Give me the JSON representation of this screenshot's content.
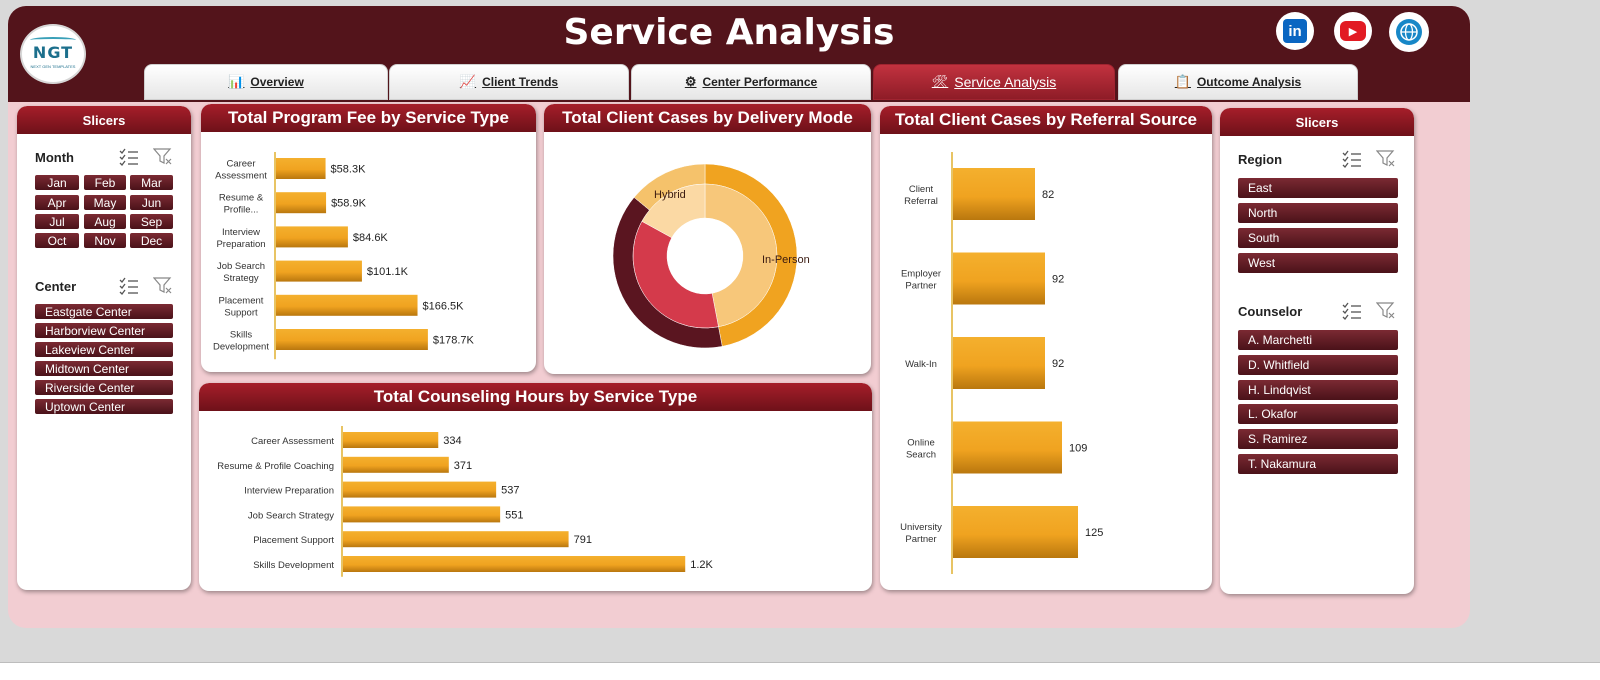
{
  "header": {
    "title": "Service Analysis",
    "logo_text": "NGT",
    "logo_sub": "NEXT GEN TEMPLATES",
    "social": [
      {
        "name": "linkedin-icon",
        "label": "in",
        "color": "#0a66c2"
      },
      {
        "name": "youtube-icon",
        "label": "▶",
        "color": "#e21b23"
      },
      {
        "name": "globe-icon",
        "label": "🌐",
        "color": "#1787c7"
      }
    ]
  },
  "tabs": [
    {
      "label": "Overview",
      "icon": "📊"
    },
    {
      "label": "Client Trends",
      "icon": "📈"
    },
    {
      "label": "Center Performance",
      "icon": "⚙"
    },
    {
      "label": "Service Analysis",
      "icon": "🛠",
      "active": true
    },
    {
      "label": "Outcome Analysis",
      "icon": "📋"
    }
  ],
  "left_slicers": {
    "title": "Slicers",
    "month_label": "Month",
    "months": [
      "Jan",
      "Feb",
      "Mar",
      "Apr",
      "May",
      "Jun",
      "Jul",
      "Aug",
      "Sep",
      "Oct",
      "Nov",
      "Dec"
    ],
    "center_label": "Center",
    "centers": [
      "Eastgate Center",
      "Harborview Center",
      "Lakeview Center",
      "Midtown Center",
      "Riverside Center",
      "Uptown Center"
    ]
  },
  "right_slicers": {
    "title": "Slicers",
    "region_label": "Region",
    "regions": [
      "East",
      "North",
      "South",
      "West"
    ],
    "counselor_label": "Counselor",
    "counselors": [
      "A. Marchetti",
      "D. Whitfield",
      "H. Lindqvist",
      "L. Okafor",
      "S. Ramirez",
      "T. Nakamura"
    ]
  },
  "colors": {
    "maroon": "#53141b",
    "bar": "#f0a320",
    "bar_dark": "#b9770e"
  },
  "chart_data": [
    {
      "type": "bar",
      "orientation": "horizontal",
      "title": "Total Program Fee by Service Type",
      "categories": [
        [
          "Career",
          "Assessment"
        ],
        [
          "Resume &",
          "Profile..."
        ],
        [
          "Interview",
          "Preparation"
        ],
        [
          "Job Search",
          "Strategy"
        ],
        [
          "Placement",
          "Support"
        ],
        [
          "Skills",
          "Development"
        ]
      ],
      "values": [
        58300,
        58900,
        84600,
        101100,
        166500,
        178700
      ],
      "labels": [
        "$58.3K",
        "$58.9K",
        "$84.6K",
        "$101.1K",
        "$166.5K",
        "$178.7K"
      ],
      "xlim": [
        0,
        200000
      ]
    },
    {
      "type": "pie",
      "variant": "doughnut",
      "title": "Total Client Cases by Delivery Mode",
      "labels": [
        "In-Person",
        "Hybrid"
      ],
      "rings": [
        {
          "values": [
            0.47,
            0.39,
            0.14
          ],
          "colors": [
            "#f0a320",
            "#5a1520",
            "#f5c26b"
          ]
        },
        {
          "values": [
            0.47,
            0.36,
            0.17
          ],
          "colors": [
            "#f7c77a",
            "#d43a4b",
            "#fbd9a4"
          ]
        }
      ]
    },
    {
      "type": "bar",
      "orientation": "vertical-labels",
      "title": "Total Client Cases by Referral Source",
      "categories": [
        [
          "Client",
          "Referral"
        ],
        [
          "Employer",
          "Partner"
        ],
        [
          "Walk-In"
        ],
        [
          "Online",
          "Search"
        ],
        [
          "University",
          "Partner"
        ]
      ],
      "values": [
        82,
        92,
        92,
        109,
        125
      ],
      "labels": [
        "82",
        "92",
        "92",
        "109",
        "125"
      ],
      "xlim": [
        0,
        140
      ]
    },
    {
      "type": "bar",
      "orientation": "horizontal",
      "title": "Total Counseling Hours by Service Type",
      "categories": [
        "Career Assessment",
        "Resume & Profile Coaching",
        "Interview Preparation",
        "Job Search Strategy",
        "Placement Support",
        "Skills Development"
      ],
      "values": [
        334,
        371,
        537,
        551,
        791,
        1200
      ],
      "labels": [
        "334",
        "371",
        "537",
        "551",
        "791",
        "1.2K"
      ],
      "xlim": [
        0,
        1350
      ]
    }
  ]
}
